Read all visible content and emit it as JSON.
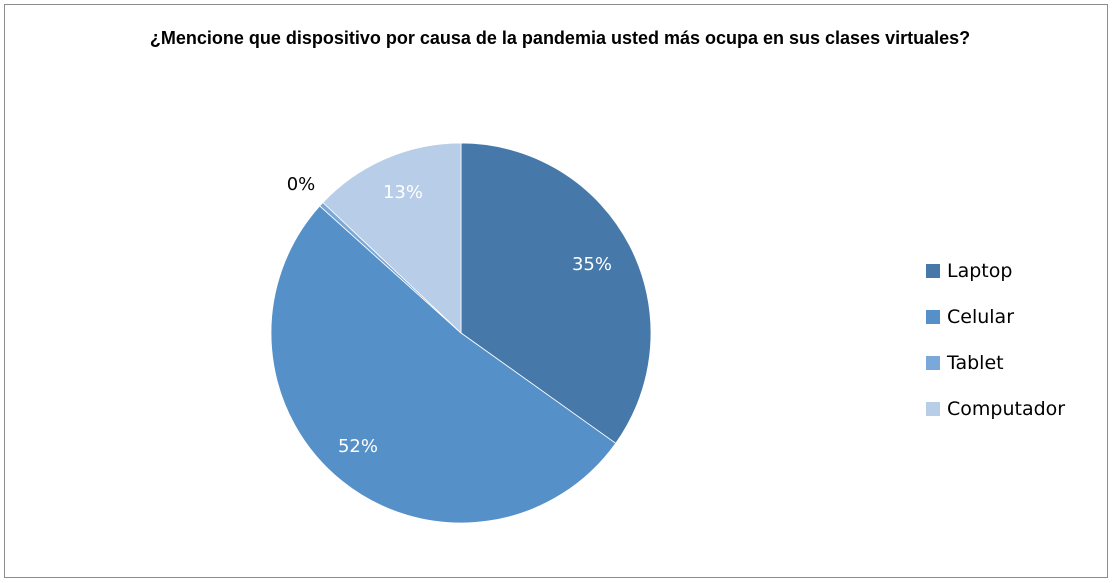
{
  "chart_data": {
    "type": "pie",
    "title": "¿Mencione que dispositivo por causa de la pandemia usted más ocupa en sus clases virtuales?",
    "categories": [
      "Laptop",
      "Celular",
      "Tablet",
      "Computador"
    ],
    "values": [
      35,
      52,
      0.4,
      13
    ],
    "labels": [
      "35%",
      "52%",
      "0%",
      "13%"
    ],
    "colors": [
      "#4679a9",
      "#5591c8",
      "#7aa8d8",
      "#b8cde8"
    ],
    "label_colors": [
      "#ffffff",
      "#ffffff",
      "#000000",
      "#ffffff"
    ],
    "start_angle": "12 o'clock",
    "direction": "clockwise",
    "legend_position": "right"
  }
}
